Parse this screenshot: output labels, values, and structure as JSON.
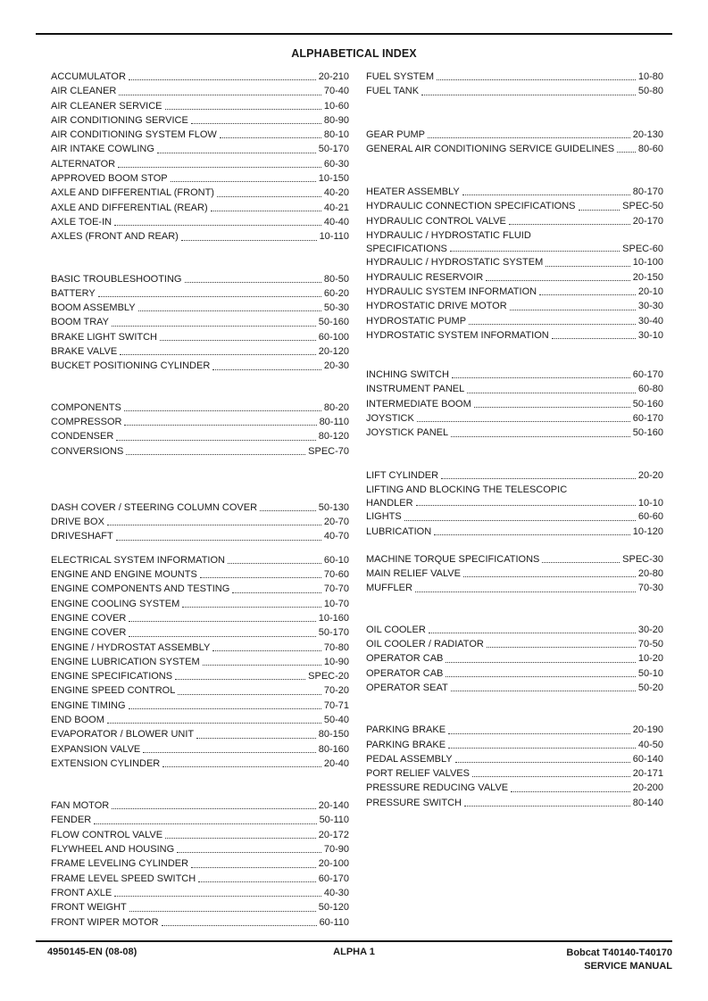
{
  "title": "ALPHABETICAL INDEX",
  "index": {
    "left": [
      [
        {
          "t": "ACCUMULATOR",
          "p": "20-210"
        },
        {
          "t": "AIR CLEANER",
          "p": "70-40"
        },
        {
          "t": "AIR CLEANER SERVICE",
          "p": "10-60"
        },
        {
          "t": "AIR CONDITIONING SERVICE",
          "p": "80-90"
        },
        {
          "t": "AIR CONDITIONING SYSTEM FLOW",
          "p": "80-10"
        },
        {
          "t": "AIR INTAKE COWLING",
          "p": "50-170"
        },
        {
          "t": "ALTERNATOR",
          "p": "60-30"
        },
        {
          "t": "APPROVED BOOM STOP",
          "p": "10-150"
        },
        {
          "t": "AXLE AND DIFFERENTIAL (FRONT)",
          "p": "40-20"
        },
        {
          "t": "AXLE AND DIFFERENTIAL (REAR)",
          "p": "40-21"
        },
        {
          "t": "AXLE TOE-IN",
          "p": "40-40"
        },
        {
          "t": "AXLES (FRONT AND REAR)",
          "p": "10-110"
        }
      ],
      [
        {
          "t": "BASIC TROUBLESHOOTING",
          "p": "80-50"
        },
        {
          "t": "BATTERY",
          "p": "60-20"
        },
        {
          "t": "BOOM ASSEMBLY",
          "p": "50-30"
        },
        {
          "t": "BOOM TRAY",
          "p": "50-160"
        },
        {
          "t": "BRAKE LIGHT SWITCH",
          "p": "60-100"
        },
        {
          "t": "BRAKE VALVE",
          "p": "20-120"
        },
        {
          "t": "BUCKET POSITIONING CYLINDER",
          "p": "20-30"
        }
      ],
      [
        {
          "t": "COMPONENTS",
          "p": "80-20"
        },
        {
          "t": "COMPRESSOR",
          "p": "80-110"
        },
        {
          "t": "CONDENSER",
          "p": "80-120"
        },
        {
          "t": "CONVERSIONS",
          "p": "SPEC-70"
        }
      ],
      [
        {
          "t": "DASH COVER / STEERING COLUMN COVER",
          "p": "50-130"
        },
        {
          "t": "DRIVE BOX",
          "p": "20-70"
        },
        {
          "t": "DRIVESHAFT",
          "p": "40-70"
        }
      ],
      [
        {
          "t": "ELECTRICAL SYSTEM INFORMATION",
          "p": "60-10"
        },
        {
          "t": "ENGINE AND ENGINE MOUNTS",
          "p": "70-60"
        },
        {
          "t": "ENGINE COMPONENTS AND TESTING",
          "p": "70-70"
        },
        {
          "t": "ENGINE COOLING SYSTEM",
          "p": "10-70"
        },
        {
          "t": "ENGINE COVER",
          "p": "10-160"
        },
        {
          "t": "ENGINE COVER",
          "p": "50-170"
        },
        {
          "t": "ENGINE / HYDROSTAT ASSEMBLY",
          "p": "70-80"
        },
        {
          "t": "ENGINE LUBRICATION SYSTEM",
          "p": "10-90"
        },
        {
          "t": "ENGINE SPECIFICATIONS",
          "p": "SPEC-20"
        },
        {
          "t": "ENGINE SPEED CONTROL",
          "p": "70-20"
        },
        {
          "t": "ENGINE TIMING",
          "p": "70-71"
        },
        {
          "t": "END BOOM",
          "p": "50-40"
        },
        {
          "t": "EVAPORATOR / BLOWER UNIT",
          "p": "80-150"
        },
        {
          "t": "EXPANSION VALVE",
          "p": "80-160"
        },
        {
          "t": "EXTENSION CYLINDER",
          "p": "20-40"
        }
      ],
      [
        {
          "t": "FAN MOTOR",
          "p": "20-140"
        },
        {
          "t": "FENDER",
          "p": "50-110"
        },
        {
          "t": "FLOW CONTROL VALVE",
          "p": "20-172"
        },
        {
          "t": "FLYWHEEL AND HOUSING",
          "p": "70-90"
        },
        {
          "t": "FRAME LEVELING CYLINDER",
          "p": "20-100"
        },
        {
          "t": "FRAME LEVEL SPEED SWITCH",
          "p": "60-170"
        },
        {
          "t": "FRONT AXLE",
          "p": "40-30"
        },
        {
          "t": "FRONT WEIGHT",
          "p": "50-120"
        },
        {
          "t": "FRONT WIPER MOTOR",
          "p": "60-110"
        }
      ]
    ],
    "right": [
      [
        {
          "t": "FUEL SYSTEM",
          "p": "10-80"
        },
        {
          "t": "FUEL TANK",
          "p": "50-80"
        }
      ],
      [
        {
          "t": "GEAR PUMP",
          "p": "20-130"
        },
        {
          "t": "GENERAL AIR CONDITIONING SERVICE GUIDELINES",
          "p": "80-60"
        }
      ],
      [
        {
          "t": "HEATER ASSEMBLY",
          "p": "80-170"
        },
        {
          "t": "HYDRAULIC CONNECTION SPECIFICATIONS",
          "p": "SPEC-50"
        },
        {
          "t": "HYDRAULIC CONTROL VALVE",
          "p": "20-170"
        },
        {
          "t1": "HYDRAULIC / HYDROSTATIC FLUID",
          "t": "SPECIFICATIONS",
          "p": "SPEC-60"
        },
        {
          "t": "HYDRAULIC / HYDROSTATIC SYSTEM",
          "p": "10-100"
        },
        {
          "t": "HYDRAULIC RESERVOIR",
          "p": "20-150"
        },
        {
          "t": "HYDRAULIC SYSTEM INFORMATION",
          "p": "20-10"
        },
        {
          "t": "HYDROSTATIC DRIVE MOTOR",
          "p": "30-30"
        },
        {
          "t": "HYDROSTATIC PUMP",
          "p": "30-40"
        },
        {
          "t": "HYDROSTATIC SYSTEM INFORMATION",
          "p": "30-10"
        }
      ],
      [
        {
          "t": "INCHING SWITCH",
          "p": "60-170"
        },
        {
          "t": "INSTRUMENT PANEL",
          "p": "60-80"
        },
        {
          "t": "INTERMEDIATE BOOM",
          "p": "50-160"
        },
        {
          "t": "JOYSTICK",
          "p": "60-170"
        },
        {
          "t": "JOYSTICK PANEL",
          "p": "50-160"
        }
      ],
      [
        {
          "t": "LIFT CYLINDER",
          "p": "20-20"
        },
        {
          "t1": "LIFTING AND BLOCKING THE TELESCOPIC",
          "t": "HANDLER",
          "p": "10-10"
        },
        {
          "t": "LIGHTS",
          "p": "60-60"
        },
        {
          "t": "LUBRICATION",
          "p": "10-120"
        }
      ],
      [
        {
          "t": "MACHINE TORQUE SPECIFICATIONS",
          "p": "SPEC-30"
        },
        {
          "t": "MAIN RELIEF VALVE",
          "p": "20-80"
        },
        {
          "t": "MUFFLER",
          "p": "70-30"
        }
      ],
      [
        {
          "t": "OIL COOLER",
          "p": "30-20"
        },
        {
          "t": "OIL COOLER / RADIATOR",
          "p": "70-50"
        },
        {
          "t": "OPERATOR CAB",
          "p": "10-20"
        },
        {
          "t": "OPERATOR CAB",
          "p": "50-10"
        },
        {
          "t": "OPERATOR SEAT",
          "p": "50-20"
        }
      ],
      [
        {
          "t": "PARKING BRAKE",
          "p": "20-190"
        },
        {
          "t": "PARKING BRAKE",
          "p": "40-50"
        },
        {
          "t": "PEDAL ASSEMBLY",
          "p": "60-140"
        },
        {
          "t": "PORT RELIEF VALVES",
          "p": "20-171"
        },
        {
          "t": "PRESSURE REDUCING VALVE",
          "p": "20-200"
        },
        {
          "t": "PRESSURE SWITCH",
          "p": "80-140"
        }
      ]
    ]
  },
  "footer": {
    "doc_number": "4950145-EN (08-08)",
    "page_label": "ALPHA 1",
    "manual_line1": "Bobcat T40140-T40170",
    "manual_line2": "SERVICE MANUAL"
  }
}
